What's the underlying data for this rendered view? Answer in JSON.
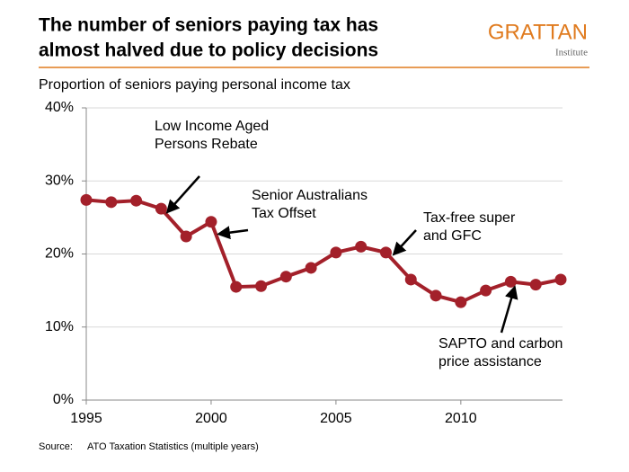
{
  "chart_data": {
    "type": "line",
    "title": [
      "The number of seniors paying tax has",
      "almost halved due to policy decisions"
    ],
    "logo": {
      "name": "GRATTAN",
      "sub": "Institute"
    },
    "subtitle": "Proportion of seniors paying personal income tax",
    "x": [
      1995,
      1996,
      1997,
      1998,
      1999,
      2000,
      2001,
      2002,
      2003,
      2004,
      2005,
      2006,
      2007,
      2008,
      2009,
      2010,
      2011,
      2012,
      2013,
      2014
    ],
    "series": [
      {
        "color": "#a3202a",
        "values": [
          27.4,
          27.1,
          27.3,
          26.2,
          22.4,
          24.4,
          15.5,
          15.6,
          16.9,
          18.1,
          20.2,
          21.0,
          20.2,
          16.5,
          14.3,
          13.4,
          15.0,
          16.2,
          15.8,
          16.5
        ]
      }
    ],
    "xlim": [
      1995,
      2014
    ],
    "xticks": [
      1995,
      2000,
      2005,
      2010
    ],
    "ylim": [
      0,
      40
    ],
    "yticks": [
      {
        "value": 0,
        "label": "0%"
      },
      {
        "value": 10,
        "label": "10%"
      },
      {
        "value": 20,
        "label": "20%"
      },
      {
        "value": 30,
        "label": "30%"
      },
      {
        "value": 40,
        "label": "40%"
      }
    ],
    "grid": true,
    "annotations": [
      {
        "text": [
          "Low Income Aged",
          "Persons Rebate"
        ]
      },
      {
        "text": [
          "Senior Australians",
          "Tax Offset"
        ]
      },
      {
        "text": [
          "Tax-free super",
          "and GFC"
        ]
      },
      {
        "text": [
          "SAPTO and carbon",
          "price assistance"
        ]
      }
    ],
    "source": {
      "label": "Source:",
      "text": "ATO Taxation Statistics (multiple years)"
    }
  }
}
